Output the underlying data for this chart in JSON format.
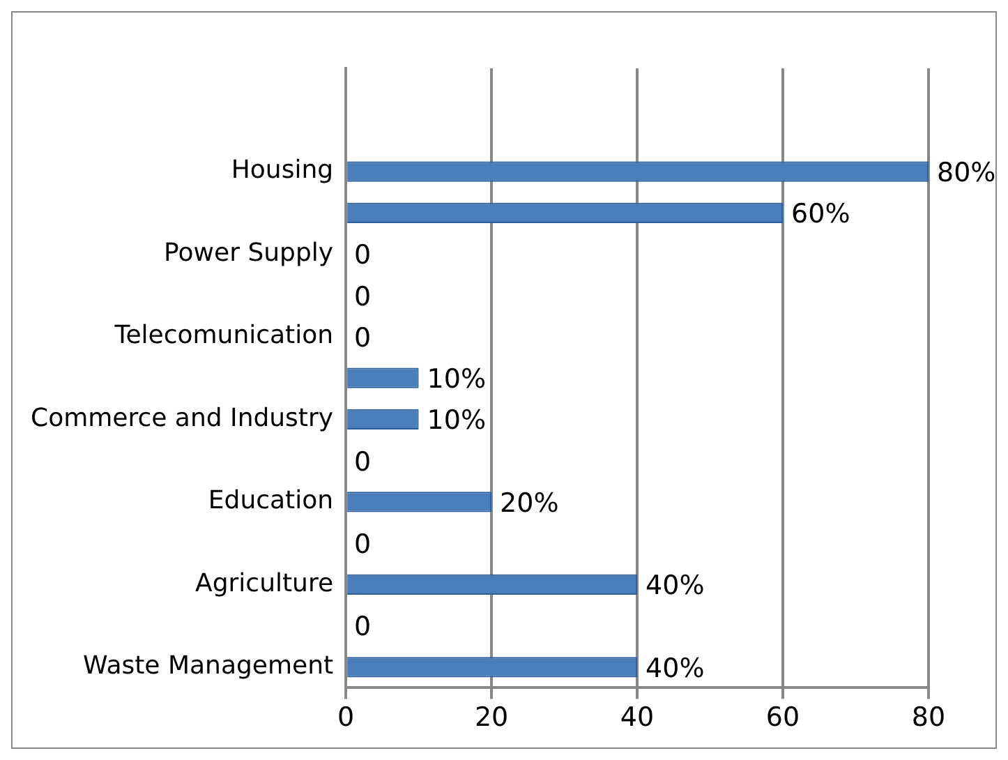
{
  "chart_data": {
    "type": "bar",
    "orientation": "horizontal",
    "categories": [
      null,
      null,
      "Housing",
      null,
      "Power Supply",
      null,
      "Telecomunication",
      null,
      "Commerce and Industry",
      null,
      "Education",
      null,
      "Agriculture",
      null,
      "Waste Management"
    ],
    "values": [
      null,
      null,
      80,
      60,
      0,
      0,
      0,
      10,
      10,
      0,
      20,
      0,
      40,
      0,
      40
    ],
    "value_labels": [
      null,
      null,
      "80%",
      "60%",
      "0",
      "0",
      "0",
      "10%",
      "10%",
      "0",
      "20%",
      "0",
      "40%",
      "0",
      "40%"
    ],
    "color": "#4a7ebb",
    "xlim": [
      0,
      80
    ],
    "xticks": [
      0,
      20,
      40,
      60,
      80
    ],
    "grid": "x",
    "legend": false
  }
}
